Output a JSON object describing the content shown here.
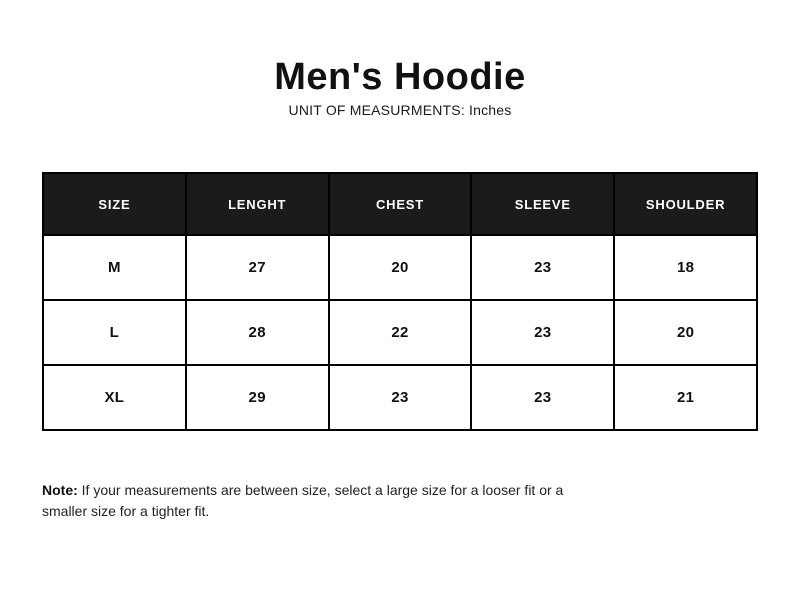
{
  "page": {
    "title": "Men's Hoodie",
    "subtitle": "UNIT OF MEASURMENTS: Inches"
  },
  "table": {
    "columns": [
      "SIZE",
      "LENGHT",
      "CHEST",
      "SLEEVE",
      "SHOULDER"
    ],
    "rows": [
      {
        "cells": [
          "M",
          "27",
          "20",
          "23",
          "18"
        ]
      },
      {
        "cells": [
          "L",
          "28",
          "22",
          "23",
          "20"
        ]
      },
      {
        "cells": [
          "XL",
          "29",
          "23",
          "23",
          "21"
        ]
      }
    ]
  },
  "note": {
    "label": "Note:",
    "text": "If your measurements are between size, select a large size for a looser fit or a smaller size for a tighter fit."
  },
  "colors": {
    "header_bg": "#1b1b1b",
    "header_text": "#ffffff",
    "border": "#000000",
    "body_text": "#111111"
  }
}
